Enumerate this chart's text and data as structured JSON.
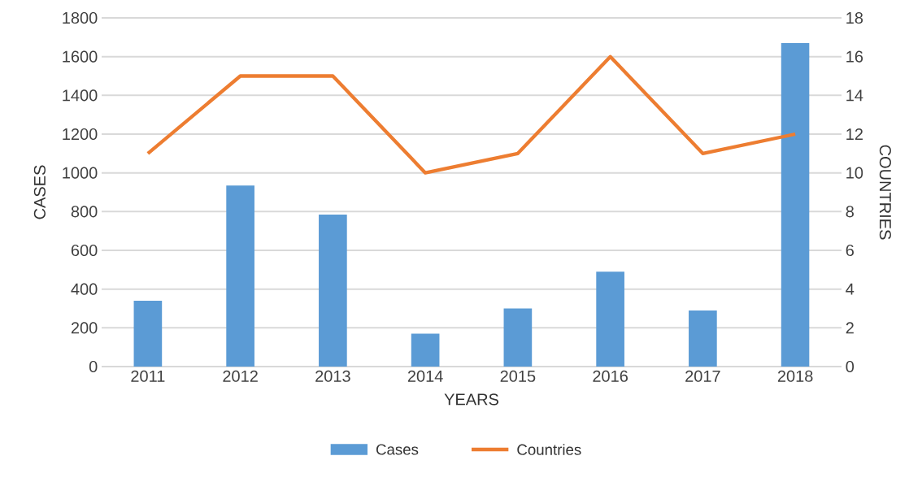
{
  "chart_data": {
    "type": "bar",
    "categories": [
      "2011",
      "2012",
      "2013",
      "2014",
      "2015",
      "2016",
      "2017",
      "2018"
    ],
    "xlabel": "YEARS",
    "ylabel": "CASES",
    "y2label": "COUNTRIES",
    "series": [
      {
        "name": "Cases",
        "color": "#5b9bd5",
        "values": [
          340,
          935,
          785,
          170,
          300,
          490,
          290,
          1670
        ]
      },
      {
        "name": "Countries",
        "type": "line",
        "axis": "y2",
        "color": "#ed7d31",
        "values": [
          11,
          15,
          15,
          10,
          11,
          16,
          11,
          12
        ]
      }
    ],
    "ylim": [
      0,
      1800
    ],
    "yticks": [
      0,
      200,
      400,
      600,
      800,
      1000,
      1200,
      1400,
      1600,
      1800
    ],
    "y2lim": [
      0,
      18
    ],
    "y2ticks": [
      0,
      2,
      4,
      6,
      8,
      10,
      12,
      14,
      16,
      18
    ],
    "grid": "y",
    "legend": "bottom"
  }
}
